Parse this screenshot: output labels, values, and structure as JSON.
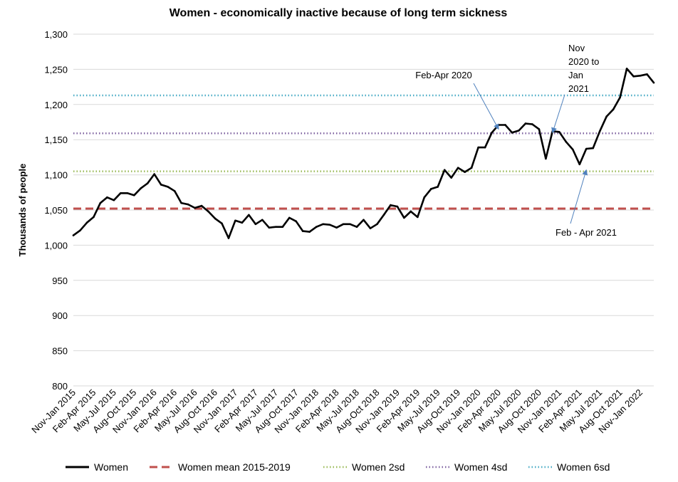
{
  "chart_data": {
    "type": "line",
    "title": "Women - economically inactive because of long term sickness",
    "xlabel": "",
    "ylabel": "Thousands of people",
    "ylim": [
      800,
      1300
    ],
    "y_ticks": [
      800,
      850,
      900,
      950,
      1000,
      1050,
      1100,
      1150,
      1200,
      1250,
      1300
    ],
    "y_tick_labels": [
      "800",
      "850",
      "900",
      "950",
      "1,000",
      "1,050",
      "1,100",
      "1,150",
      "1,200",
      "1,250",
      "1,300"
    ],
    "x_tick_labels": [
      "Nov-Jan 2015",
      "Feb-Apr 2015",
      "May-Jul 2015",
      "Aug-Oct 2015",
      "Nov-Jan 2016",
      "Feb-Apr 2016",
      "May-Jul 2016",
      "Aug-Oct 2016",
      "Nov-Jan 2017",
      "Feb-Apr 2017",
      "May-Jul 2017",
      "Aug-Oct 2017",
      "Nov-Jan 2018",
      "Feb-Apr 2018",
      "May-Jul 2018",
      "Aug-Oct 2018",
      "Nov-Jan 2019",
      "Feb-Apr 2019",
      "May-Jul 2019",
      "Aug-Oct 2019",
      "Nov-Jan 2020",
      "Feb-Apr 2020",
      "May-Jul 2020",
      "Aug-Oct 2020",
      "Nov-Jan 2021",
      "Feb-Apr 2021",
      "May-Jul 2021",
      "Aug-Oct 2021",
      "Nov-Jan 2022"
    ],
    "grid": "horizontal",
    "legend_position": "bottom",
    "series": [
      {
        "name": "Women",
        "color": "#000000",
        "style": "solid",
        "values": [
          1014,
          1021,
          1032,
          1040,
          1060,
          1068,
          1064,
          1074,
          1074,
          1071,
          1081,
          1088,
          1101,
          1086,
          1083,
          1077,
          1060,
          1058,
          1053,
          1056,
          1048,
          1038,
          1031,
          1010,
          1035,
          1032,
          1043,
          1030,
          1036,
          1025,
          1026,
          1026,
          1039,
          1034,
          1020,
          1019,
          1026,
          1030,
          1029,
          1025,
          1030,
          1030,
          1026,
          1036,
          1024,
          1030,
          1043,
          1057,
          1055,
          1039,
          1048,
          1040,
          1068,
          1080,
          1083,
          1107,
          1096,
          1110,
          1104,
          1110,
          1139,
          1139,
          1160,
          1171,
          1171,
          1160,
          1163,
          1173,
          1172,
          1165,
          1123,
          1162,
          1161,
          1147,
          1136,
          1115,
          1137,
          1138,
          1162,
          1183,
          1193,
          1210,
          1251,
          1240,
          1241,
          1243,
          1231
        ]
      },
      {
        "name": "Women mean 2015-2019",
        "color": "#c0504d",
        "style": "dashed",
        "value": 1052
      },
      {
        "name": "Women 2sd",
        "color": "#9bbb59",
        "style": "dotted",
        "value": 1105
      },
      {
        "name": "Women 4sd",
        "color": "#8064a2",
        "style": "dotted",
        "value": 1159
      },
      {
        "name": "Women 6sd",
        "color": "#4bacc6",
        "style": "dotted",
        "value": 1213
      }
    ],
    "annotations": [
      {
        "lines": [
          "Feb-Apr 2020"
        ],
        "arrow_to_index": 63,
        "arrow_to_value": 1165
      },
      {
        "lines": [
          "Nov",
          "2020 to",
          "Jan",
          "2021"
        ],
        "arrow_to_index": 71,
        "arrow_to_value": 1160
      },
      {
        "lines": [
          "Feb - Apr 2021"
        ],
        "arrow_to_index": 76,
        "arrow_to_value": 1107
      }
    ],
    "arrow_color": "#4f81bd"
  }
}
